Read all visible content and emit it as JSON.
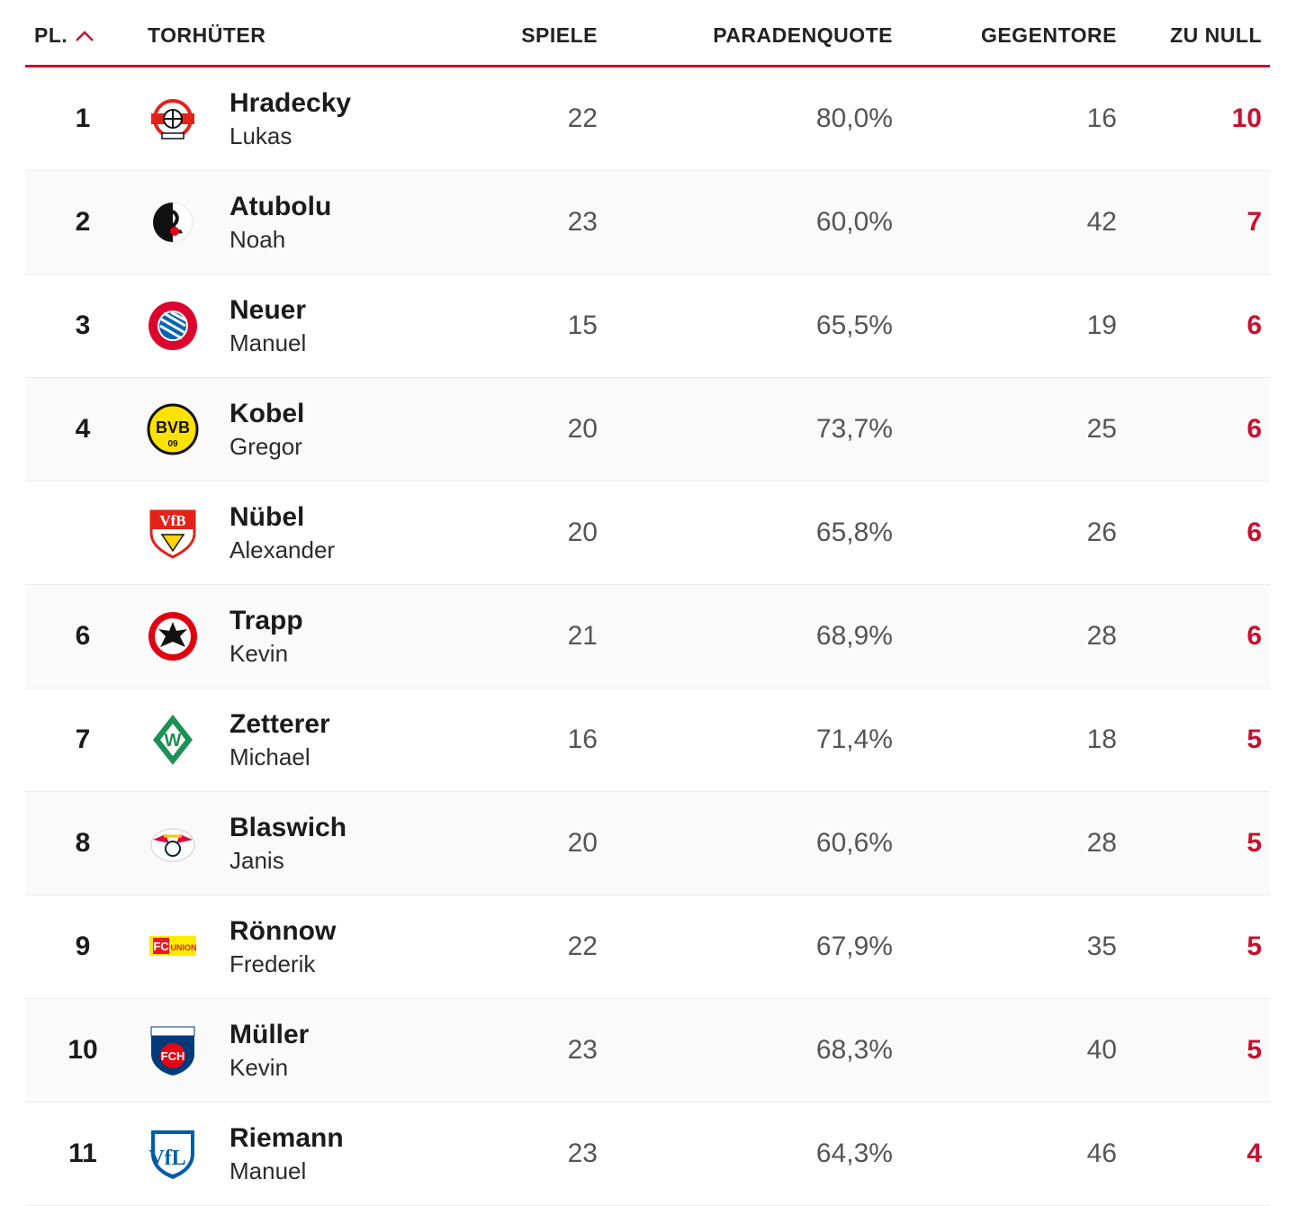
{
  "header": {
    "rank": "PL.",
    "name": "TORHÜTER",
    "games": "SPIELE",
    "save_rate": "PARADENQUOTE",
    "conceded": "GEGENTORE",
    "clean_sheets": "ZU NULL"
  },
  "colors": {
    "accent": "#c8102e"
  },
  "rows": [
    {
      "rank": "1",
      "last": "Hradecky",
      "first": "Lukas",
      "games": "22",
      "save": "80,0%",
      "conc": "16",
      "clean": "10",
      "logo": "leverkusen-crest-icon"
    },
    {
      "rank": "2",
      "last": "Atubolu",
      "first": "Noah",
      "games": "23",
      "save": "60,0%",
      "conc": "42",
      "clean": "7",
      "logo": "freiburg-crest-icon"
    },
    {
      "rank": "3",
      "last": "Neuer",
      "first": "Manuel",
      "games": "15",
      "save": "65,5%",
      "conc": "19",
      "clean": "6",
      "logo": "bayern-crest-icon"
    },
    {
      "rank": "4",
      "last": "Kobel",
      "first": "Gregor",
      "games": "20",
      "save": "73,7%",
      "conc": "25",
      "clean": "6",
      "logo": "dortmund-crest-icon"
    },
    {
      "rank": "",
      "last": "Nübel",
      "first": "Alexander",
      "games": "20",
      "save": "65,8%",
      "conc": "26",
      "clean": "6",
      "logo": "stuttgart-crest-icon"
    },
    {
      "rank": "6",
      "last": "Trapp",
      "first": "Kevin",
      "games": "21",
      "save": "68,9%",
      "conc": "28",
      "clean": "6",
      "logo": "frankfurt-crest-icon"
    },
    {
      "rank": "7",
      "last": "Zetterer",
      "first": "Michael",
      "games": "16",
      "save": "71,4%",
      "conc": "18",
      "clean": "5",
      "logo": "bremen-crest-icon"
    },
    {
      "rank": "8",
      "last": "Blaswich",
      "first": "Janis",
      "games": "20",
      "save": "60,6%",
      "conc": "28",
      "clean": "5",
      "logo": "leipzig-crest-icon"
    },
    {
      "rank": "9",
      "last": "Rönnow",
      "first": "Frederik",
      "games": "22",
      "save": "67,9%",
      "conc": "35",
      "clean": "5",
      "logo": "union-crest-icon"
    },
    {
      "rank": "10",
      "last": "Müller",
      "first": "Kevin",
      "games": "23",
      "save": "68,3%",
      "conc": "40",
      "clean": "5",
      "logo": "heidenheim-crest-icon"
    },
    {
      "rank": "11",
      "last": "Riemann",
      "first": "Manuel",
      "games": "23",
      "save": "64,3%",
      "conc": "46",
      "clean": "4",
      "logo": "bochum-crest-icon"
    }
  ]
}
